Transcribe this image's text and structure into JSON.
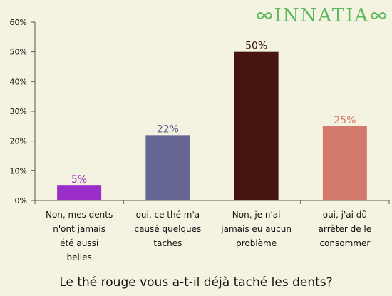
{
  "brand": {
    "name": "INNATIA",
    "color": "#5cb85a"
  },
  "chart_data": {
    "type": "bar",
    "title": "Le thé rouge vous a-t-il déjà taché les dents?",
    "xlabel": "",
    "ylabel": "",
    "ylim": [
      0,
      60
    ],
    "yticks": [
      "0%",
      "10%",
      "20%",
      "30%",
      "40%",
      "50%",
      "60%"
    ],
    "grid": false,
    "categories": [
      "Non, mes dents n'ont jamais été aussi belles",
      "oui, ce thé m'a causé quelques taches",
      "Non, je n'ai jamais eu aucun problème",
      "oui, j'ai dû arrêter de le consommer"
    ],
    "category_lines": [
      [
        "Non, mes dents",
        "n'ont jamais",
        "été aussi",
        "belles"
      ],
      [
        "oui, ce thé m'a",
        "causé quelques",
        "taches"
      ],
      [
        "Non, je n'ai",
        "jamais eu aucun",
        "problème"
      ],
      [
        "oui, j'ai dû",
        "arrêter de le",
        "consommer"
      ]
    ],
    "values": [
      5,
      22,
      50,
      25
    ],
    "value_labels": [
      "5%",
      "22%",
      "50%",
      "25%"
    ],
    "colors": [
      "#9b2dc8",
      "#666694",
      "#47150f",
      "#d47a6c"
    ],
    "label_colors": [
      "#9b2dc8",
      "#5b5b8c",
      "#3a0f0a",
      "#d47a6c"
    ]
  }
}
